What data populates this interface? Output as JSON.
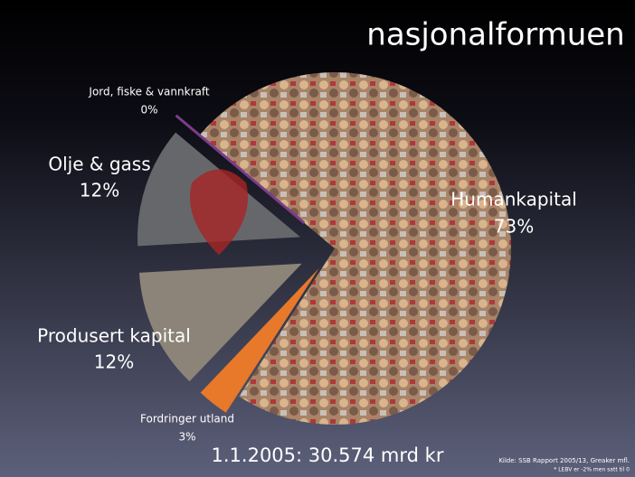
{
  "chart_data": {
    "type": "pie",
    "title": "nasjonalformuen",
    "subtitle": "1.1.2005: 30.574 mrd kr",
    "categories": [
      "Humankapital",
      "Fordringer utland",
      "Produsert kapital",
      "Olje & gass",
      "Jord, fiske & vannkraft"
    ],
    "values": [
      73,
      3,
      12,
      12,
      0
    ],
    "value_labels": [
      "73%",
      "3%",
      "12%",
      "12%",
      "0%"
    ],
    "colors": [
      "#a88468",
      "#e8782a",
      "#8c8478",
      "#66676b",
      "#7a3c8c"
    ],
    "source": "Kilde: SSB Rapport 2005/13, Greaker mfl.",
    "note": "* LEBV er -2% men satt til 0"
  }
}
